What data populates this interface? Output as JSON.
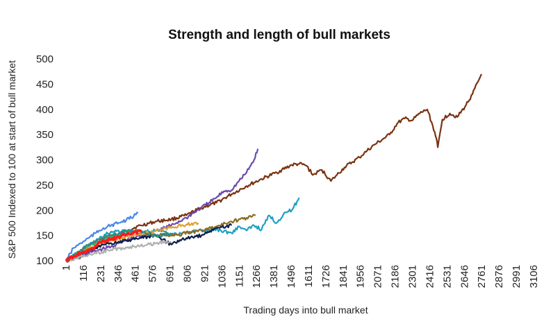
{
  "chart_data": {
    "type": "line",
    "title": "Strength and length of bull markets",
    "xlabel": "Trading days into bull market",
    "ylabel": "S&P 500 Indexed to 100 at start of bull market",
    "ylim": [
      100,
      500
    ],
    "xlim": [
      1,
      3150
    ],
    "y_ticks": [
      100,
      150,
      200,
      250,
      300,
      350,
      400,
      450,
      500
    ],
    "x_ticks": [
      1,
      116,
      231,
      346,
      461,
      576,
      691,
      806,
      921,
      1036,
      1151,
      1266,
      1381,
      1496,
      1611,
      1726,
      1841,
      1956,
      2071,
      2186,
      2301,
      2416,
      2531,
      2646,
      2761,
      2876,
      2991,
      3106
    ],
    "grid": false,
    "legend": "none",
    "series": [
      {
        "color": "#7a3210",
        "x": [
          1,
          100,
          200,
          300,
          400,
          500,
          600,
          700,
          800,
          900,
          1000,
          1100,
          1200,
          1300,
          1400,
          1500,
          1550,
          1600,
          1640,
          1700,
          1760,
          1800,
          1850,
          1900,
          1950,
          2000,
          2050,
          2100,
          2150,
          2200,
          2250,
          2300,
          2350,
          2400,
          2450,
          2470,
          2500,
          2550,
          2600,
          2650,
          2700,
          2760
        ],
        "y": [
          100,
          108,
          125,
          145,
          160,
          170,
          178,
          182,
          190,
          205,
          215,
          232,
          248,
          262,
          275,
          290,
          292,
          288,
          270,
          280,
          258,
          270,
          285,
          295,
          305,
          318,
          330,
          340,
          350,
          372,
          382,
          378,
          392,
          400,
          355,
          325,
          380,
          392,
          385,
          405,
          430,
          470
        ]
      },
      {
        "color": "#6a4bab",
        "x": [
          1,
          100,
          200,
          300,
          400,
          500,
          600,
          700,
          800,
          900,
          950,
          1000,
          1050,
          1100,
          1150,
          1200,
          1250,
          1275
        ],
        "y": [
          100,
          110,
          120,
          128,
          140,
          150,
          160,
          170,
          185,
          205,
          215,
          225,
          238,
          240,
          258,
          275,
          300,
          322
        ]
      },
      {
        "color": "#1fa0c0",
        "x": [
          1,
          100,
          200,
          300,
          400,
          500,
          600,
          700,
          800,
          900,
          1000,
          1100,
          1150,
          1200,
          1250,
          1300,
          1350,
          1400,
          1450,
          1500,
          1550
        ],
        "y": [
          100,
          120,
          140,
          158,
          160,
          158,
          160,
          152,
          156,
          160,
          162,
          155,
          168,
          160,
          170,
          162,
          190,
          175,
          195,
          200,
          225
        ]
      },
      {
        "color": "#4a86e8",
        "x": [
          1,
          50,
          100,
          150,
          200,
          250,
          300,
          350,
          400,
          450,
          480
        ],
        "y": [
          100,
          125,
          135,
          145,
          155,
          165,
          170,
          175,
          180,
          188,
          195
        ]
      },
      {
        "color": "#8b6b1e",
        "x": [
          1,
          150,
          300,
          450,
          600,
          750,
          900,
          1000,
          1100,
          1200,
          1260
        ],
        "y": [
          100,
          130,
          150,
          155,
          150,
          152,
          160,
          168,
          178,
          185,
          190
        ]
      },
      {
        "color": "#3cb371",
        "x": [
          1,
          100,
          200,
          300,
          400,
          480
        ],
        "y": [
          100,
          120,
          135,
          145,
          155,
          160
        ]
      },
      {
        "color": "#e0a030",
        "x": [
          1,
          150,
          300,
          450,
          600,
          700,
          800,
          880
        ],
        "y": [
          100,
          125,
          140,
          150,
          160,
          165,
          172,
          175
        ]
      },
      {
        "color": "#0f1d4a",
        "x": [
          1,
          100,
          200,
          300,
          400,
          500,
          600,
          700,
          800,
          900,
          1000,
          1100
        ],
        "y": [
          100,
          115,
          125,
          135,
          140,
          145,
          150,
          132,
          145,
          150,
          165,
          170
        ]
      },
      {
        "color": "#2e8b8b",
        "x": [
          1,
          100,
          200,
          300,
          400,
          500,
          600,
          700
        ],
        "y": [
          100,
          122,
          138,
          150,
          158,
          160,
          148,
          155
        ]
      },
      {
        "color": "#b0b0b0",
        "x": [
          1,
          150,
          300,
          450,
          600,
          700
        ],
        "y": [
          100,
          112,
          122,
          128,
          135,
          138
        ]
      },
      {
        "color": "#ff1a1a",
        "x": [
          1,
          50,
          100,
          150,
          200,
          250,
          300,
          350,
          400,
          450,
          500
        ],
        "y": [
          100,
          108,
          115,
          120,
          130,
          140,
          142,
          148,
          152,
          155,
          158
        ]
      }
    ]
  }
}
